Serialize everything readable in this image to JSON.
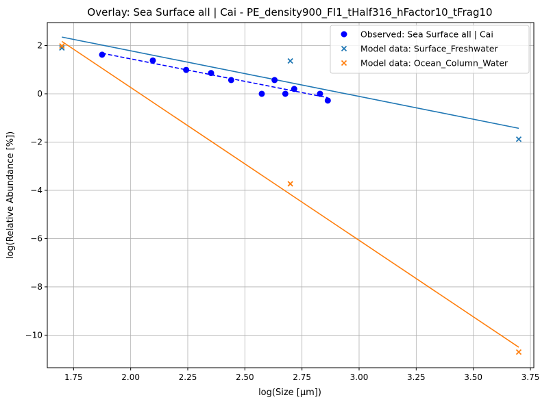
{
  "chart_data": {
    "type": "scatter",
    "title": "Overlay: Sea Surface all | Cai - PE_density900_FI1_tHalf316_hFactor10_tFrag10",
    "xlabel": "log(Size [μm])",
    "ylabel": "log(Relative Abundance [%])",
    "xlim": [
      1.635,
      3.765
    ],
    "ylim": [
      -11.35,
      2.95
    ],
    "xticks": [
      1.75,
      2.0,
      2.25,
      2.5,
      2.75,
      3.0,
      3.25,
      3.5,
      3.75
    ],
    "xtick_labels": [
      "1.75",
      "2.00",
      "2.25",
      "2.50",
      "2.75",
      "3.00",
      "3.25",
      "3.50",
      "3.75"
    ],
    "yticks": [
      2,
      0,
      -2,
      -4,
      -6,
      -8,
      -10
    ],
    "ytick_labels": [
      "2",
      "0",
      "−2",
      "−4",
      "−6",
      "−8",
      "−10"
    ],
    "grid": true,
    "legend_position": "top-right",
    "series": [
      {
        "name": "Observed: Sea Surface all | Cai",
        "kind": "scatter-dot",
        "color": "#0000ff",
        "x": [
          1.875,
          2.097,
          2.243,
          2.352,
          2.44,
          2.574,
          2.63,
          2.677,
          2.716,
          2.829,
          2.863
        ],
        "y": [
          1.62,
          1.38,
          0.99,
          0.86,
          0.57,
          0.0,
          0.57,
          0.0,
          0.2,
          0.0,
          -0.28
        ]
      },
      {
        "name": "Model data: Surface_Freshwater",
        "kind": "scatter-x",
        "color": "#1f77b4",
        "x": [
          1.699,
          2.699,
          3.699
        ],
        "y": [
          1.9,
          1.36,
          -1.88
        ]
      },
      {
        "name": "Model data: Ocean_Column_Water",
        "kind": "scatter-x",
        "color": "#ff7f0e",
        "x": [
          1.699,
          2.699,
          3.699
        ],
        "y": [
          1.98,
          -3.73,
          -10.7
        ]
      }
    ],
    "fit_lines": [
      {
        "color": "#0000ff",
        "style": "dashed",
        "x": [
          1.875,
          2.863
        ],
        "y": [
          1.68,
          -0.16
        ]
      },
      {
        "color": "#1f77b4",
        "style": "solid",
        "x": [
          1.699,
          3.699
        ],
        "y": [
          2.35,
          -1.43
        ]
      },
      {
        "color": "#ff7f0e",
        "style": "solid",
        "x": [
          1.699,
          3.699
        ],
        "y": [
          2.17,
          -10.5
        ]
      }
    ]
  }
}
